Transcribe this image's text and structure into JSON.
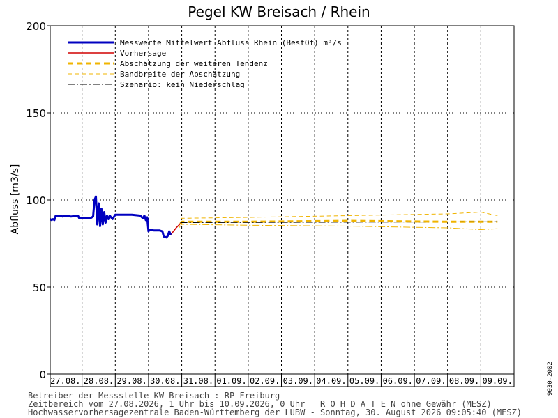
{
  "chart_data": {
    "type": "line",
    "title": "Pegel KW Breisach / Rhein",
    "ylabel": "Abfluss [m3/s]",
    "xlabel": "",
    "ylim": [
      0,
      200
    ],
    "yticks": [
      0,
      50,
      100,
      150,
      200
    ],
    "x_range": [
      "2026-08-27 01:00",
      "2026-09-10 00:00"
    ],
    "date_labels": [
      "27.08.",
      "28.08.",
      "29.08.",
      "30.08.",
      "31.08.",
      "01.09.",
      "02.09.",
      "03.09.",
      "04.09.",
      "05.09.",
      "06.09.",
      "07.09.",
      "08.09.",
      "09.09."
    ],
    "grid": true,
    "legend_position": "top-left",
    "legend": [
      {
        "label": "Messwerte Mittelwert Abfluss Rhein (BestOf)   m³/s",
        "style": "solid-thick",
        "color": "#0000c0"
      },
      {
        "label": "Vorhersage",
        "style": "solid",
        "color": "#d00000"
      },
      {
        "label": "Abschätzung der weiteren Tendenz",
        "style": "dashed-thick",
        "color": "#f0b400"
      },
      {
        "label": "Bandbreite der Abschätzung",
        "style": "dashed-thin",
        "color": "#f0b400"
      },
      {
        "label": "Szenario: kein Niederschlag",
        "style": "dashdot",
        "color": "#000000"
      }
    ],
    "series": [
      {
        "name": "Messwerte Mittelwert Abfluss Rhein (BestOf)   m³/s",
        "color": "#0000c0",
        "points": [
          [
            "2026-08-27 01:00",
            89
          ],
          [
            "2026-08-27 02:00",
            88.5
          ],
          [
            "2026-08-27 03:00",
            89
          ],
          [
            "2026-08-27 04:00",
            88.5
          ],
          [
            "2026-08-27 05:00",
            91
          ],
          [
            "2026-08-27 08:00",
            91
          ],
          [
            "2026-08-27 10:00",
            90.5
          ],
          [
            "2026-08-27 12:00",
            91
          ],
          [
            "2026-08-27 16:00",
            90.5
          ],
          [
            "2026-08-27 21:00",
            91
          ],
          [
            "2026-08-27 22:00",
            89.5
          ],
          [
            "2026-08-28 06:00",
            89.5
          ],
          [
            "2026-08-28 07:00",
            90
          ],
          [
            "2026-08-28 08:00",
            90.5
          ],
          [
            "2026-08-28 09:00",
            100
          ],
          [
            "2026-08-28 10:00",
            102
          ],
          [
            "2026-08-28 11:00",
            86
          ],
          [
            "2026-08-28 12:00",
            98
          ],
          [
            "2026-08-28 13:00",
            85
          ],
          [
            "2026-08-28 14:00",
            95
          ],
          [
            "2026-08-28 15:00",
            86
          ],
          [
            "2026-08-28 16:00",
            93
          ],
          [
            "2026-08-28 17:00",
            87
          ],
          [
            "2026-08-28 18:00",
            91
          ],
          [
            "2026-08-28 19:00",
            89
          ],
          [
            "2026-08-28 20:00",
            91
          ],
          [
            "2026-08-28 22:00",
            89
          ],
          [
            "2026-08-29 00:00",
            91.5
          ],
          [
            "2026-08-29 06:00",
            91.5
          ],
          [
            "2026-08-29 12:00",
            91.5
          ],
          [
            "2026-08-29 18:00",
            91
          ],
          [
            "2026-08-29 20:00",
            89.5
          ],
          [
            "2026-08-29 21:00",
            91
          ],
          [
            "2026-08-29 22:00",
            88.5
          ],
          [
            "2026-08-29 23:00",
            90
          ],
          [
            "2026-08-30 00:00",
            82
          ],
          [
            "2026-08-30 01:00",
            83
          ],
          [
            "2026-08-30 04:00",
            82.5
          ],
          [
            "2026-08-30 08:00",
            82.5
          ],
          [
            "2026-08-30 10:00",
            82
          ],
          [
            "2026-08-30 11:00",
            79
          ],
          [
            "2026-08-30 13:00",
            78.5
          ],
          [
            "2026-08-30 14:00",
            79.5
          ],
          [
            "2026-08-30 15:00",
            82
          ],
          [
            "2026-08-30 16:00",
            80
          ]
        ]
      },
      {
        "name": "Vorhersage",
        "color": "#d00000",
        "points": [
          [
            "2026-08-30 16:00",
            80
          ],
          [
            "2026-08-30 18:00",
            82
          ],
          [
            "2026-08-30 20:00",
            84
          ],
          [
            "2026-08-30 23:00",
            86.5
          ]
        ]
      },
      {
        "name": "Abschätzung der weiteren Tendenz",
        "color": "#f0b400",
        "points": [
          [
            "2026-08-30 23:00",
            86
          ],
          [
            "2026-08-31 00:00",
            87.5
          ],
          [
            "2026-09-02 00:00",
            87.5
          ],
          [
            "2026-09-05 00:00",
            88
          ],
          [
            "2026-09-08 00:00",
            87.5
          ],
          [
            "2026-09-09 12:00",
            87.5
          ]
        ]
      },
      {
        "name": "Bandbreite der Abschätzung (oben)",
        "color": "#f0b400",
        "points": [
          [
            "2026-08-30 22:00",
            85
          ],
          [
            "2026-08-31 00:00",
            89.5
          ],
          [
            "2026-09-02 00:00",
            90
          ],
          [
            "2026-09-05 00:00",
            91
          ],
          [
            "2026-09-08 00:00",
            92
          ],
          [
            "2026-09-09 00:00",
            93
          ],
          [
            "2026-09-09 12:00",
            91
          ]
        ]
      },
      {
        "name": "Bandbreite der Abschätzung (unten)",
        "color": "#f0b400",
        "points": [
          [
            "2026-08-30 22:00",
            84
          ],
          [
            "2026-08-31 00:00",
            86
          ],
          [
            "2026-09-02 00:00",
            85.5
          ],
          [
            "2026-09-05 00:00",
            85
          ],
          [
            "2026-09-08 00:00",
            84
          ],
          [
            "2026-09-09 00:00",
            83
          ],
          [
            "2026-09-09 12:00",
            83.5
          ]
        ]
      },
      {
        "name": "Szenario: kein Niederschlag",
        "color": "#000000",
        "points": [
          [
            "2026-08-30 23:00",
            87
          ],
          [
            "2026-09-09 12:00",
            87.5
          ]
        ]
      }
    ]
  },
  "footer": {
    "line1": "Betreiber der Messstelle KW Breisach : RP Freiburg",
    "line2": "Zeitbereich vom 27.08.2026, 1 Uhr bis 10.09.2026, 0 Uhr   R O H D A T E N ohne Gewähr (MESZ)",
    "line3": "Hochwasservorhersagezentrale Baden-Württemberg der LUBW - Sonntag, 30. August 2026 09:05:40 (MESZ)",
    "side_code": "9030-2002"
  }
}
